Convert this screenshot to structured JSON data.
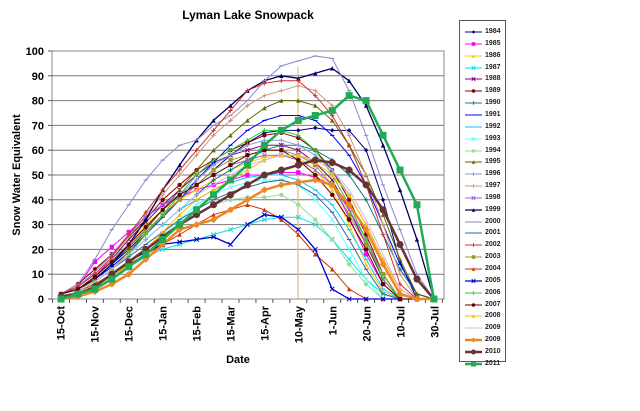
{
  "chart_data": {
    "type": "line",
    "title": "Lyman Lake Snowpack",
    "xlabel": "Date",
    "ylabel": "Snow Water Equivalent",
    "ylim": [
      0,
      100
    ],
    "yticks": [
      0,
      10,
      20,
      30,
      40,
      50,
      60,
      70,
      80,
      90,
      100
    ],
    "grid": true,
    "legend_position": "right",
    "x_tick_labels": [
      "15-Oct",
      "15-Nov",
      "15-Dec",
      "15-Jan",
      "15-Feb",
      "15-Mar",
      "15-Apr",
      "10-May",
      "1-Jun",
      "20-Jun",
      "10-Jul",
      "30-Jul"
    ],
    "x_tick_label_point_index": [
      0,
      3,
      5.5,
      8.5,
      11,
      13.5,
      16,
      18.5,
      21,
      23,
      25,
      27.5
    ],
    "x_points": 23,
    "series": [
      {
        "name": "1984",
        "color": "#000080",
        "marker": "diamond",
        "width": 1,
        "values": [
          2,
          4,
          8,
          14,
          20,
          27,
          34,
          40,
          46,
          52,
          58,
          63,
          67,
          68,
          68,
          69,
          68,
          68,
          60,
          40,
          15,
          0,
          0
        ]
      },
      {
        "name": "1985",
        "color": "#ff00ff",
        "marker": "square",
        "width": 1,
        "values": [
          2,
          5,
          15,
          21,
          27,
          33,
          38,
          41,
          44,
          46,
          48,
          50,
          50,
          51,
          51,
          49,
          46,
          33,
          18,
          6,
          0,
          0,
          0
        ]
      },
      {
        "name": "1986",
        "color": "#ffcc00",
        "marker": "triangle",
        "width": 1,
        "values": [
          1,
          3,
          8,
          14,
          22,
          30,
          36,
          40,
          44,
          48,
          52,
          55,
          57,
          58,
          57,
          52,
          44,
          30,
          14,
          3,
          0,
          0,
          0
        ]
      },
      {
        "name": "1987",
        "color": "#00e5e5",
        "marker": "cross",
        "width": 1,
        "values": [
          1,
          2,
          5,
          9,
          13,
          17,
          20,
          22,
          24,
          26,
          28,
          30,
          32,
          33,
          33,
          30,
          24,
          16,
          8,
          2,
          0,
          0,
          0
        ]
      },
      {
        "name": "1988",
        "color": "#800080",
        "marker": "star",
        "width": 1,
        "values": [
          2,
          4,
          9,
          16,
          24,
          31,
          38,
          44,
          50,
          55,
          58,
          60,
          62,
          62,
          60,
          55,
          48,
          36,
          22,
          8,
          0,
          0,
          0
        ]
      },
      {
        "name": "1989",
        "color": "#800000",
        "marker": "circle",
        "width": 1,
        "values": [
          2,
          6,
          12,
          18,
          25,
          32,
          40,
          46,
          52,
          56,
          60,
          63,
          66,
          67,
          65,
          60,
          52,
          40,
          26,
          10,
          0,
          0,
          0
        ]
      },
      {
        "name": "1990",
        "color": "#008080",
        "marker": "plus",
        "width": 1,
        "values": [
          1,
          3,
          7,
          12,
          18,
          24,
          30,
          36,
          42,
          48,
          52,
          56,
          60,
          62,
          62,
          60,
          56,
          50,
          40,
          26,
          12,
          2,
          0
        ]
      },
      {
        "name": "1991",
        "color": "#0000ff",
        "marker": "dash",
        "width": 1,
        "values": [
          2,
          4,
          8,
          13,
          19,
          26,
          33,
          40,
          48,
          55,
          62,
          68,
          72,
          74,
          74,
          72,
          66,
          58,
          46,
          30,
          14,
          2,
          0
        ]
      },
      {
        "name": "1992",
        "color": "#00ccff",
        "marker": "dash",
        "width": 1,
        "values": [
          1,
          3,
          7,
          12,
          18,
          24,
          30,
          36,
          40,
          44,
          47,
          49,
          50,
          50,
          48,
          44,
          38,
          28,
          16,
          4,
          0,
          0,
          0
        ]
      },
      {
        "name": "1993",
        "color": "#66ffff",
        "marker": "star",
        "width": 1,
        "values": [
          1,
          2,
          5,
          9,
          14,
          20,
          26,
          32,
          38,
          42,
          45,
          47,
          48,
          48,
          46,
          40,
          32,
          20,
          8,
          0,
          0,
          0,
          0
        ]
      },
      {
        "name": "1994",
        "color": "#99dd99",
        "marker": "circle",
        "width": 1,
        "values": [
          1,
          2,
          5,
          9,
          14,
          20,
          26,
          30,
          34,
          38,
          40,
          41,
          41,
          42,
          38,
          32,
          24,
          14,
          6,
          0,
          0,
          0,
          0
        ]
      },
      {
        "name": "1995",
        "color": "#666600",
        "marker": "triangle",
        "width": 1,
        "values": [
          2,
          4,
          8,
          14,
          21,
          28,
          36,
          44,
          52,
          60,
          66,
          72,
          77,
          80,
          80,
          78,
          72,
          62,
          50,
          34,
          16,
          2,
          0
        ]
      },
      {
        "name": "1996",
        "color": "#8899dd",
        "marker": "plus",
        "width": 1,
        "values": [
          2,
          5,
          10,
          16,
          22,
          29,
          36,
          42,
          48,
          54,
          58,
          62,
          64,
          64,
          62,
          58,
          52,
          42,
          30,
          16,
          4,
          0,
          0
        ]
      },
      {
        "name": "1997",
        "color": "#cc9977",
        "marker": "plus",
        "width": 1,
        "values": [
          2,
          5,
          10,
          17,
          25,
          34,
          42,
          50,
          58,
          66,
          72,
          78,
          82,
          84,
          86,
          84,
          78,
          66,
          50,
          30,
          10,
          0,
          0
        ]
      },
      {
        "name": "1998",
        "color": "#9966cc",
        "marker": "star",
        "width": 1,
        "values": [
          2,
          5,
          11,
          18,
          26,
          33,
          38,
          42,
          46,
          50,
          54,
          56,
          58,
          58,
          56,
          52,
          46,
          36,
          24,
          10,
          0,
          0,
          0
        ]
      },
      {
        "name": "1999",
        "color": "#000066",
        "marker": "triangle",
        "width": 1.3,
        "values": [
          2,
          4,
          8,
          14,
          22,
          32,
          44,
          54,
          64,
          72,
          78,
          84,
          88,
          90,
          89,
          91,
          93,
          88,
          78,
          62,
          44,
          24,
          0
        ]
      },
      {
        "name": "2000",
        "color": "#8888cc",
        "marker": "dash",
        "width": 1,
        "values": [
          2,
          6,
          16,
          28,
          38,
          48,
          56,
          62,
          64,
          70,
          74,
          80,
          88,
          94,
          96,
          98,
          97,
          84,
          66,
          46,
          28,
          10,
          0
        ]
      },
      {
        "name": "2001",
        "color": "#336699",
        "marker": "dash",
        "width": 1,
        "values": [
          1,
          3,
          7,
          12,
          17,
          22,
          27,
          32,
          36,
          40,
          43,
          45,
          47,
          48,
          46,
          42,
          35,
          24,
          12,
          2,
          0,
          0,
          0
        ]
      },
      {
        "name": "2002",
        "color": "#cc3333",
        "marker": "plus",
        "width": 1,
        "values": [
          2,
          5,
          10,
          17,
          26,
          35,
          44,
          52,
          60,
          68,
          76,
          84,
          87,
          88,
          88,
          82,
          74,
          62,
          46,
          26,
          6,
          0,
          0
        ]
      },
      {
        "name": "2003",
        "color": "#999933",
        "marker": "square",
        "width": 1,
        "values": [
          1,
          3,
          7,
          12,
          19,
          27,
          34,
          40,
          46,
          52,
          56,
          58,
          60,
          60,
          58,
          54,
          46,
          34,
          22,
          10,
          0,
          0,
          0
        ]
      },
      {
        "name": "2004",
        "color": "#cc3300",
        "marker": "triangle",
        "width": 1,
        "values": [
          1,
          3,
          6,
          10,
          14,
          18,
          22,
          26,
          30,
          34,
          36,
          38,
          36,
          32,
          26,
          18,
          12,
          4,
          0,
          0,
          0,
          0,
          0
        ]
      },
      {
        "name": "2005",
        "color": "#0000cc",
        "marker": "cross",
        "width": 1.3,
        "values": [
          1,
          2,
          5,
          10,
          15,
          19,
          22,
          23,
          24,
          25,
          22,
          30,
          34,
          33,
          28,
          20,
          4,
          0,
          0,
          0,
          0,
          0,
          0
        ]
      },
      {
        "name": "2006",
        "color": "#33cc33",
        "marker": "plus",
        "width": 1,
        "values": [
          1,
          3,
          7,
          12,
          18,
          26,
          34,
          42,
          50,
          56,
          60,
          64,
          68,
          68,
          66,
          60,
          50,
          38,
          24,
          8,
          0,
          0,
          0
        ]
      },
      {
        "name": "2007",
        "color": "#660000",
        "marker": "circle",
        "width": 1,
        "values": [
          2,
          4,
          9,
          15,
          22,
          29,
          36,
          42,
          46,
          50,
          54,
          58,
          60,
          60,
          56,
          50,
          42,
          32,
          20,
          6,
          0,
          0,
          0
        ]
      },
      {
        "name": "2008",
        "color": "#ffbb00",
        "marker": "triangle",
        "width": 1,
        "values": [
          1,
          2,
          5,
          9,
          14,
          20,
          27,
          34,
          40,
          44,
          48,
          52,
          56,
          58,
          58,
          55,
          50,
          42,
          30,
          16,
          4,
          0,
          0
        ]
      },
      {
        "name": "2009",
        "color": "#ccbbdd",
        "marker": "none",
        "width": 1,
        "values": [
          1,
          3,
          7,
          12,
          18,
          24,
          30,
          36,
          42,
          46,
          50,
          54,
          56,
          58,
          58,
          56,
          52,
          44,
          32,
          18,
          4,
          0,
          0
        ]
      },
      {
        "name": "2009",
        "color": "#ee8822",
        "marker": "diamond",
        "width": 2.5,
        "values": [
          0,
          1,
          3,
          6,
          10,
          16,
          22,
          28,
          30,
          32,
          36,
          40,
          44,
          46,
          47,
          48,
          46,
          38,
          28,
          14,
          2,
          0,
          0
        ]
      },
      {
        "name": "2010",
        "color": "#663333",
        "marker": "circle",
        "width": 2.5,
        "values": [
          1,
          2,
          5,
          10,
          15,
          20,
          25,
          30,
          34,
          38,
          42,
          46,
          50,
          52,
          54,
          56,
          55,
          52,
          46,
          36,
          22,
          8,
          0
        ]
      },
      {
        "name": "2011",
        "color": "#22aa55",
        "marker": "square",
        "width": 2.5,
        "values": [
          0,
          2,
          4,
          8,
          13,
          18,
          24,
          30,
          36,
          42,
          48,
          54,
          62,
          68,
          72,
          74,
          76,
          82,
          80,
          66,
          52,
          38,
          0
        ]
      }
    ]
  }
}
